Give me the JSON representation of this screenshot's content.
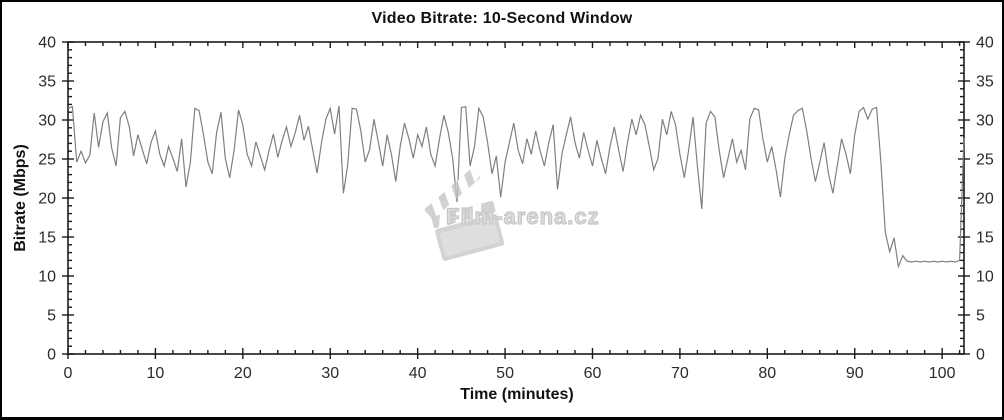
{
  "chart_data": {
    "type": "line",
    "title": "Video Bitrate: 10-Second Window",
    "xlabel": "Time (minutes)",
    "ylabel": "Bitrate (Mbps)",
    "xlim": [
      0,
      102.5
    ],
    "ylim": [
      0,
      40
    ],
    "x_major_ticks": [
      0,
      10,
      20,
      30,
      40,
      50,
      60,
      70,
      80,
      90,
      100
    ],
    "x_minor_step": 2,
    "y_major_ticks": [
      0,
      5,
      10,
      15,
      20,
      25,
      30,
      35,
      40
    ],
    "y_minor_step": 1,
    "grid": false,
    "legend": "none",
    "axis_color": "#1a1a1a",
    "tick_label_color": "#2b2b2b",
    "line_color": "#7f7f7f",
    "series": [
      {
        "name": "video-bitrate-10s-window",
        "x_start": 0,
        "x_step": 0.5,
        "values": [
          31.5,
          31.7,
          24.6,
          26.0,
          24.5,
          25.5,
          30.9,
          26.5,
          29.8,
          30.9,
          26.4,
          24.1,
          30.3,
          31.1,
          29.2,
          25.4,
          28.1,
          26.2,
          24.4,
          27.1,
          28.6,
          25.6,
          24.1,
          26.6,
          25.1,
          23.4,
          27.6,
          21.4,
          24.6,
          31.5,
          31.2,
          28.1,
          24.6,
          23.1,
          28.4,
          31.0,
          25.1,
          22.6,
          26.1,
          31.3,
          29.4,
          25.6,
          24.1,
          27.2,
          25.4,
          23.6,
          26.1,
          28.2,
          25.2,
          27.4,
          29.1,
          26.6,
          28.4,
          30.6,
          27.4,
          29.2,
          26.1,
          23.2,
          27.1,
          30.1,
          31.5,
          28.2,
          31.8,
          20.6,
          24.2,
          31.5,
          31.4,
          28.6,
          24.6,
          26.2,
          30.1,
          27.2,
          24.1,
          28.1,
          25.6,
          22.1,
          26.6,
          29.6,
          27.6,
          25.1,
          28.1,
          26.6,
          29.1,
          25.6,
          24.1,
          27.6,
          30.6,
          28.4,
          25.1,
          19.5,
          31.6,
          31.7,
          24.1,
          26.6,
          31.5,
          30.4,
          27.1,
          23.1,
          25.4,
          20.1,
          24.6,
          27.1,
          29.6,
          26.1,
          24.4,
          27.6,
          25.6,
          28.6,
          26.1,
          24.1,
          27.1,
          29.4,
          21.1,
          25.6,
          28.1,
          30.4,
          27.1,
          25.1,
          28.4,
          26.1,
          24.1,
          27.4,
          25.1,
          23.1,
          26.6,
          29.1,
          26.1,
          23.4,
          27.1,
          30.1,
          28.1,
          30.6,
          29.4,
          26.6,
          23.6,
          25.1,
          30.1,
          28.1,
          31.1,
          29.4,
          25.6,
          22.6,
          26.1,
          30.4,
          24.1,
          18.6,
          29.6,
          31.1,
          30.4,
          26.1,
          22.6,
          25.1,
          27.6,
          24.6,
          26.1,
          23.6,
          30.1,
          31.5,
          31.3,
          27.6,
          24.6,
          26.6,
          23.6,
          20.1,
          25.1,
          28.1,
          30.6,
          31.2,
          31.5,
          28.6,
          25.1,
          22.1,
          24.6,
          27.1,
          23.1,
          20.6,
          24.1,
          27.6,
          25.6,
          23.1,
          28.1,
          31.1,
          31.6,
          30.1,
          31.4,
          31.6,
          24.4,
          15.6,
          13.1,
          14.9,
          11.2,
          12.6,
          11.9,
          11.8,
          11.9,
          11.8,
          11.9,
          11.8,
          11.9,
          11.8,
          11.9,
          11.8,
          11.9,
          11.8,
          12.0,
          27.7
        ]
      }
    ],
    "watermark": {
      "text": "Film-arena.cz",
      "icon": "clapperboard-icon",
      "color": "#c8c8c8"
    }
  }
}
